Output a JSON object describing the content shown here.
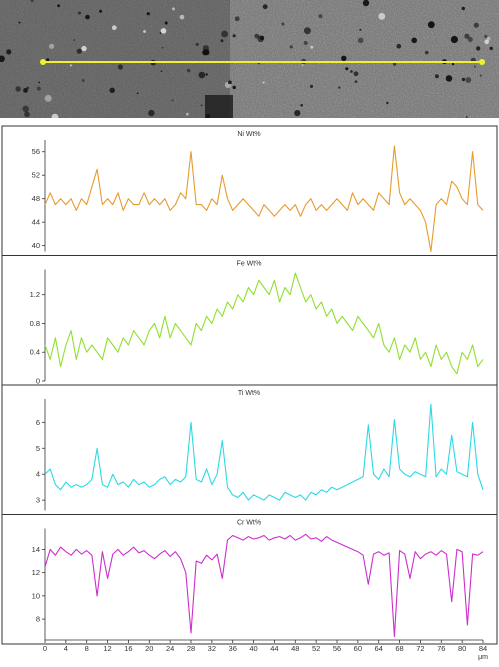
{
  "image": {
    "line_color": "#f0f030"
  },
  "chart_data": [
    {
      "type": "line",
      "title": "Ni Wt%",
      "color": "#e89a2e",
      "ylim": [
        39,
        58
      ],
      "yticks": [
        40,
        44,
        48,
        52,
        56
      ],
      "x": [
        0,
        1,
        2,
        3,
        4,
        5,
        6,
        7,
        8,
        9,
        10,
        11,
        12,
        13,
        14,
        15,
        16,
        17,
        18,
        19,
        20,
        21,
        22,
        23,
        24,
        25,
        26,
        27,
        28,
        29,
        30,
        31,
        32,
        33,
        34,
        35,
        36,
        37,
        38,
        39,
        40,
        41,
        42,
        43,
        44,
        45,
        46,
        47,
        48,
        49,
        50,
        51,
        52,
        53,
        54,
        55,
        56,
        57,
        58,
        59,
        60,
        61,
        62,
        63,
        64,
        65,
        66,
        67,
        68,
        69,
        70,
        71,
        72,
        73,
        74,
        75,
        76,
        77,
        78,
        79,
        80,
        81,
        82,
        83,
        84
      ],
      "values": [
        47,
        49,
        47,
        48,
        47,
        48,
        46,
        48,
        47,
        50,
        53,
        47,
        48,
        47,
        49,
        46,
        48,
        47,
        47,
        49,
        47,
        48,
        47,
        48,
        46,
        47,
        49,
        48,
        56,
        47,
        47,
        46,
        48,
        47,
        52,
        48,
        46,
        47,
        48,
        47,
        46,
        45,
        47,
        46,
        45,
        46,
        47,
        46,
        47,
        45,
        47,
        48,
        46,
        47,
        46,
        47,
        48,
        47,
        46,
        49,
        47,
        48,
        47,
        46,
        49,
        48,
        47,
        57,
        49,
        47,
        48,
        47,
        46,
        44,
        39,
        47,
        48,
        47,
        51,
        50,
        48,
        47,
        56,
        47,
        46
      ]
    },
    {
      "type": "line",
      "title": "Fe Wt%",
      "color": "#8fe02e",
      "ylim": [
        0,
        1.55
      ],
      "yticks": [
        0,
        0.4,
        0.8,
        1.2
      ],
      "x": [
        0,
        1,
        2,
        3,
        4,
        5,
        6,
        7,
        8,
        9,
        10,
        11,
        12,
        13,
        14,
        15,
        16,
        17,
        18,
        19,
        20,
        21,
        22,
        23,
        24,
        25,
        26,
        27,
        28,
        29,
        30,
        31,
        32,
        33,
        34,
        35,
        36,
        37,
        38,
        39,
        40,
        41,
        42,
        43,
        44,
        45,
        46,
        47,
        48,
        49,
        50,
        51,
        52,
        53,
        54,
        55,
        56,
        57,
        58,
        59,
        60,
        61,
        62,
        63,
        64,
        65,
        66,
        67,
        68,
        69,
        70,
        71,
        72,
        73,
        74,
        75,
        76,
        77,
        78,
        79,
        80,
        81,
        82,
        83,
        84
      ],
      "values": [
        0.5,
        0.3,
        0.6,
        0.2,
        0.5,
        0.7,
        0.3,
        0.6,
        0.4,
        0.5,
        0.4,
        0.3,
        0.6,
        0.5,
        0.4,
        0.6,
        0.5,
        0.7,
        0.6,
        0.5,
        0.7,
        0.8,
        0.6,
        0.9,
        0.6,
        0.8,
        0.7,
        0.6,
        0.5,
        0.8,
        0.7,
        0.9,
        0.8,
        1.0,
        0.9,
        1.1,
        1.0,
        1.2,
        1.1,
        1.3,
        1.2,
        1.4,
        1.3,
        1.2,
        1.4,
        1.1,
        1.3,
        1.2,
        1.5,
        1.3,
        1.1,
        1.2,
        1.0,
        1.1,
        0.9,
        1.0,
        0.8,
        0.9,
        0.8,
        0.7,
        0.9,
        0.8,
        0.7,
        0.6,
        0.8,
        0.5,
        0.4,
        0.6,
        0.3,
        0.5,
        0.4,
        0.6,
        0.3,
        0.4,
        0.2,
        0.5,
        0.3,
        0.4,
        0.2,
        0.1,
        0.4,
        0.3,
        0.5,
        0.2,
        0.3
      ]
    },
    {
      "type": "line",
      "title": "Ti Wt%",
      "color": "#2ed8e6",
      "ylim": [
        2.6,
        6.9
      ],
      "yticks": [
        3,
        4,
        5,
        6
      ],
      "x": [
        0,
        1,
        2,
        3,
        4,
        5,
        6,
        7,
        8,
        9,
        10,
        11,
        12,
        13,
        14,
        15,
        16,
        17,
        18,
        19,
        20,
        21,
        22,
        23,
        24,
        25,
        26,
        27,
        28,
        29,
        30,
        31,
        32,
        33,
        34,
        35,
        36,
        37,
        38,
        39,
        40,
        41,
        42,
        43,
        44,
        45,
        46,
        47,
        48,
        49,
        50,
        51,
        52,
        53,
        54,
        55,
        56,
        57,
        58,
        59,
        60,
        61,
        62,
        63,
        64,
        65,
        66,
        67,
        68,
        69,
        70,
        71,
        72,
        73,
        74,
        75,
        76,
        77,
        78,
        79,
        80,
        81,
        82,
        83,
        84
      ],
      "values": [
        4.0,
        4.2,
        3.6,
        3.4,
        3.7,
        3.5,
        3.6,
        3.5,
        3.6,
        3.8,
        5.0,
        3.6,
        3.5,
        4.0,
        3.6,
        3.7,
        3.5,
        3.8,
        3.6,
        3.7,
        3.5,
        3.6,
        3.8,
        3.9,
        3.6,
        3.8,
        3.7,
        3.9,
        6.0,
        3.8,
        3.7,
        4.2,
        3.6,
        4.0,
        5.3,
        3.5,
        3.2,
        3.1,
        3.3,
        3.0,
        3.2,
        3.1,
        3.0,
        3.2,
        3.1,
        3.0,
        3.3,
        3.2,
        3.1,
        3.2,
        3.0,
        3.3,
        3.2,
        3.4,
        3.3,
        3.5,
        3.4,
        3.5,
        3.6,
        3.7,
        3.8,
        3.9,
        5.9,
        4.0,
        3.8,
        4.2,
        3.9,
        6.1,
        4.2,
        4.0,
        3.9,
        4.1,
        4.0,
        3.9,
        6.7,
        3.9,
        4.2,
        4.0,
        5.5,
        4.1,
        4.0,
        3.9,
        6.0,
        4.0,
        3.4
      ]
    },
    {
      "type": "line",
      "title": "Cr Wt%",
      "color": "#cc2ecc",
      "ylim": [
        6.2,
        15.8
      ],
      "yticks": [
        8,
        10,
        12,
        14
      ],
      "x": [
        0,
        1,
        2,
        3,
        4,
        5,
        6,
        7,
        8,
        9,
        10,
        11,
        12,
        13,
        14,
        15,
        16,
        17,
        18,
        19,
        20,
        21,
        22,
        23,
        24,
        25,
        26,
        27,
        28,
        29,
        30,
        31,
        32,
        33,
        34,
        35,
        36,
        37,
        38,
        39,
        40,
        41,
        42,
        43,
        44,
        45,
        46,
        47,
        48,
        49,
        50,
        51,
        52,
        53,
        54,
        55,
        56,
        57,
        58,
        59,
        60,
        61,
        62,
        63,
        64,
        65,
        66,
        67,
        68,
        69,
        70,
        71,
        72,
        73,
        74,
        75,
        76,
        77,
        78,
        79,
        80,
        81,
        82,
        83,
        84
      ],
      "values": [
        12.5,
        14.0,
        13.5,
        14.2,
        13.8,
        13.5,
        14.0,
        13.6,
        13.9,
        13.5,
        10.0,
        13.8,
        11.5,
        13.6,
        14.0,
        13.5,
        13.8,
        14.2,
        13.7,
        13.9,
        13.5,
        13.2,
        13.6,
        13.9,
        13.4,
        13.8,
        13.2,
        12.0,
        6.8,
        13.0,
        12.8,
        13.5,
        13.1,
        13.6,
        11.5,
        14.8,
        15.2,
        15.0,
        14.8,
        15.1,
        14.9,
        15.0,
        15.2,
        14.8,
        15.0,
        15.1,
        14.9,
        15.2,
        14.8,
        15.0,
        15.3,
        14.9,
        15.0,
        14.7,
        15.1,
        14.8,
        14.6,
        14.4,
        14.2,
        14.0,
        13.8,
        13.5,
        11.0,
        13.6,
        13.8,
        13.5,
        13.7,
        6.5,
        13.9,
        13.6,
        11.5,
        13.8,
        13.2,
        13.6,
        13.8,
        13.5,
        13.9,
        13.6,
        9.5,
        14.0,
        13.8,
        7.5,
        13.6,
        13.5,
        13.8
      ]
    }
  ],
  "x_axis": {
    "ticks": [
      0,
      4,
      8,
      12,
      16,
      20,
      24,
      28,
      32,
      36,
      40,
      44,
      48,
      52,
      56,
      60,
      64,
      68,
      72,
      76,
      80,
      84
    ],
    "xlim": [
      0,
      84
    ],
    "unit": "μm"
  }
}
